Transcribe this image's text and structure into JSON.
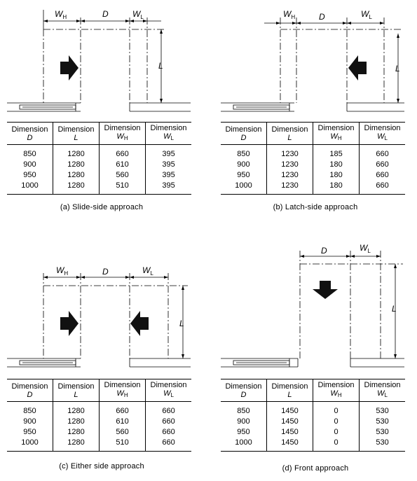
{
  "panels": {
    "a": {
      "caption": "(a) Slide-side approach",
      "labels": {
        "wh": "W",
        "wh_sub": "H",
        "d": "D",
        "wl": "W",
        "wl_sub": "L",
        "l": "L"
      },
      "headers": [
        {
          "title": "Dimension",
          "symbol": "D",
          "sub": ""
        },
        {
          "title": "Dimension",
          "symbol": "L",
          "sub": ""
        },
        {
          "title": "Dimension",
          "symbol": "W",
          "sub": "H"
        },
        {
          "title": "Dimension",
          "symbol": "W",
          "sub": "L"
        }
      ],
      "rows": [
        [
          "850",
          "1280",
          "660",
          "395"
        ],
        [
          "900",
          "1280",
          "610",
          "395"
        ],
        [
          "950",
          "1280",
          "560",
          "395"
        ],
        [
          "1000",
          "1280",
          "510",
          "395"
        ]
      ],
      "arrows": [
        "right"
      ]
    },
    "b": {
      "caption": "(b) Latch-side approach",
      "labels": {
        "wh": "W",
        "wh_sub": "H",
        "d": "D",
        "wl": "W",
        "wl_sub": "L",
        "l": "L"
      },
      "headers": [
        {
          "title": "Dimension",
          "symbol": "D",
          "sub": ""
        },
        {
          "title": "Dimension",
          "symbol": "L",
          "sub": ""
        },
        {
          "title": "Dimension",
          "symbol": "W",
          "sub": "H"
        },
        {
          "title": "Dimension",
          "symbol": "W",
          "sub": "L"
        }
      ],
      "rows": [
        [
          "850",
          "1230",
          "185",
          "660"
        ],
        [
          "900",
          "1230",
          "180",
          "660"
        ],
        [
          "950",
          "1230",
          "180",
          "660"
        ],
        [
          "1000",
          "1230",
          "180",
          "660"
        ]
      ],
      "arrows": [
        "left"
      ]
    },
    "c": {
      "caption": "(c) Either side approach",
      "labels": {
        "wh": "W",
        "wh_sub": "H",
        "d": "D",
        "wl": "W",
        "wl_sub": "L",
        "l": "L"
      },
      "headers": [
        {
          "title": "Dimension",
          "symbol": "D",
          "sub": ""
        },
        {
          "title": "Dimension",
          "symbol": "L",
          "sub": ""
        },
        {
          "title": "Dimension",
          "symbol": "W",
          "sub": "H"
        },
        {
          "title": "Dimension",
          "symbol": "W",
          "sub": "L"
        }
      ],
      "rows": [
        [
          "850",
          "1280",
          "660",
          "660"
        ],
        [
          "900",
          "1280",
          "610",
          "660"
        ],
        [
          "950",
          "1280",
          "560",
          "660"
        ],
        [
          "1000",
          "1280",
          "510",
          "660"
        ]
      ],
      "arrows": [
        "right",
        "left"
      ]
    },
    "d": {
      "caption": "(d) Front approach",
      "labels": {
        "d": "D",
        "wl": "W",
        "wl_sub": "L",
        "l": "L"
      },
      "headers": [
        {
          "title": "Dimension",
          "symbol": "D",
          "sub": ""
        },
        {
          "title": "Dimension",
          "symbol": "L",
          "sub": ""
        },
        {
          "title": "Dimension",
          "symbol": "W",
          "sub": "H"
        },
        {
          "title": "Dimension",
          "symbol": "W",
          "sub": "L"
        }
      ],
      "rows": [
        [
          "850",
          "1450",
          "0",
          "530"
        ],
        [
          "900",
          "1450",
          "0",
          "530"
        ],
        [
          "950",
          "1450",
          "0",
          "530"
        ],
        [
          "1000",
          "1450",
          "0",
          "530"
        ]
      ],
      "arrows": [
        "down"
      ]
    }
  }
}
